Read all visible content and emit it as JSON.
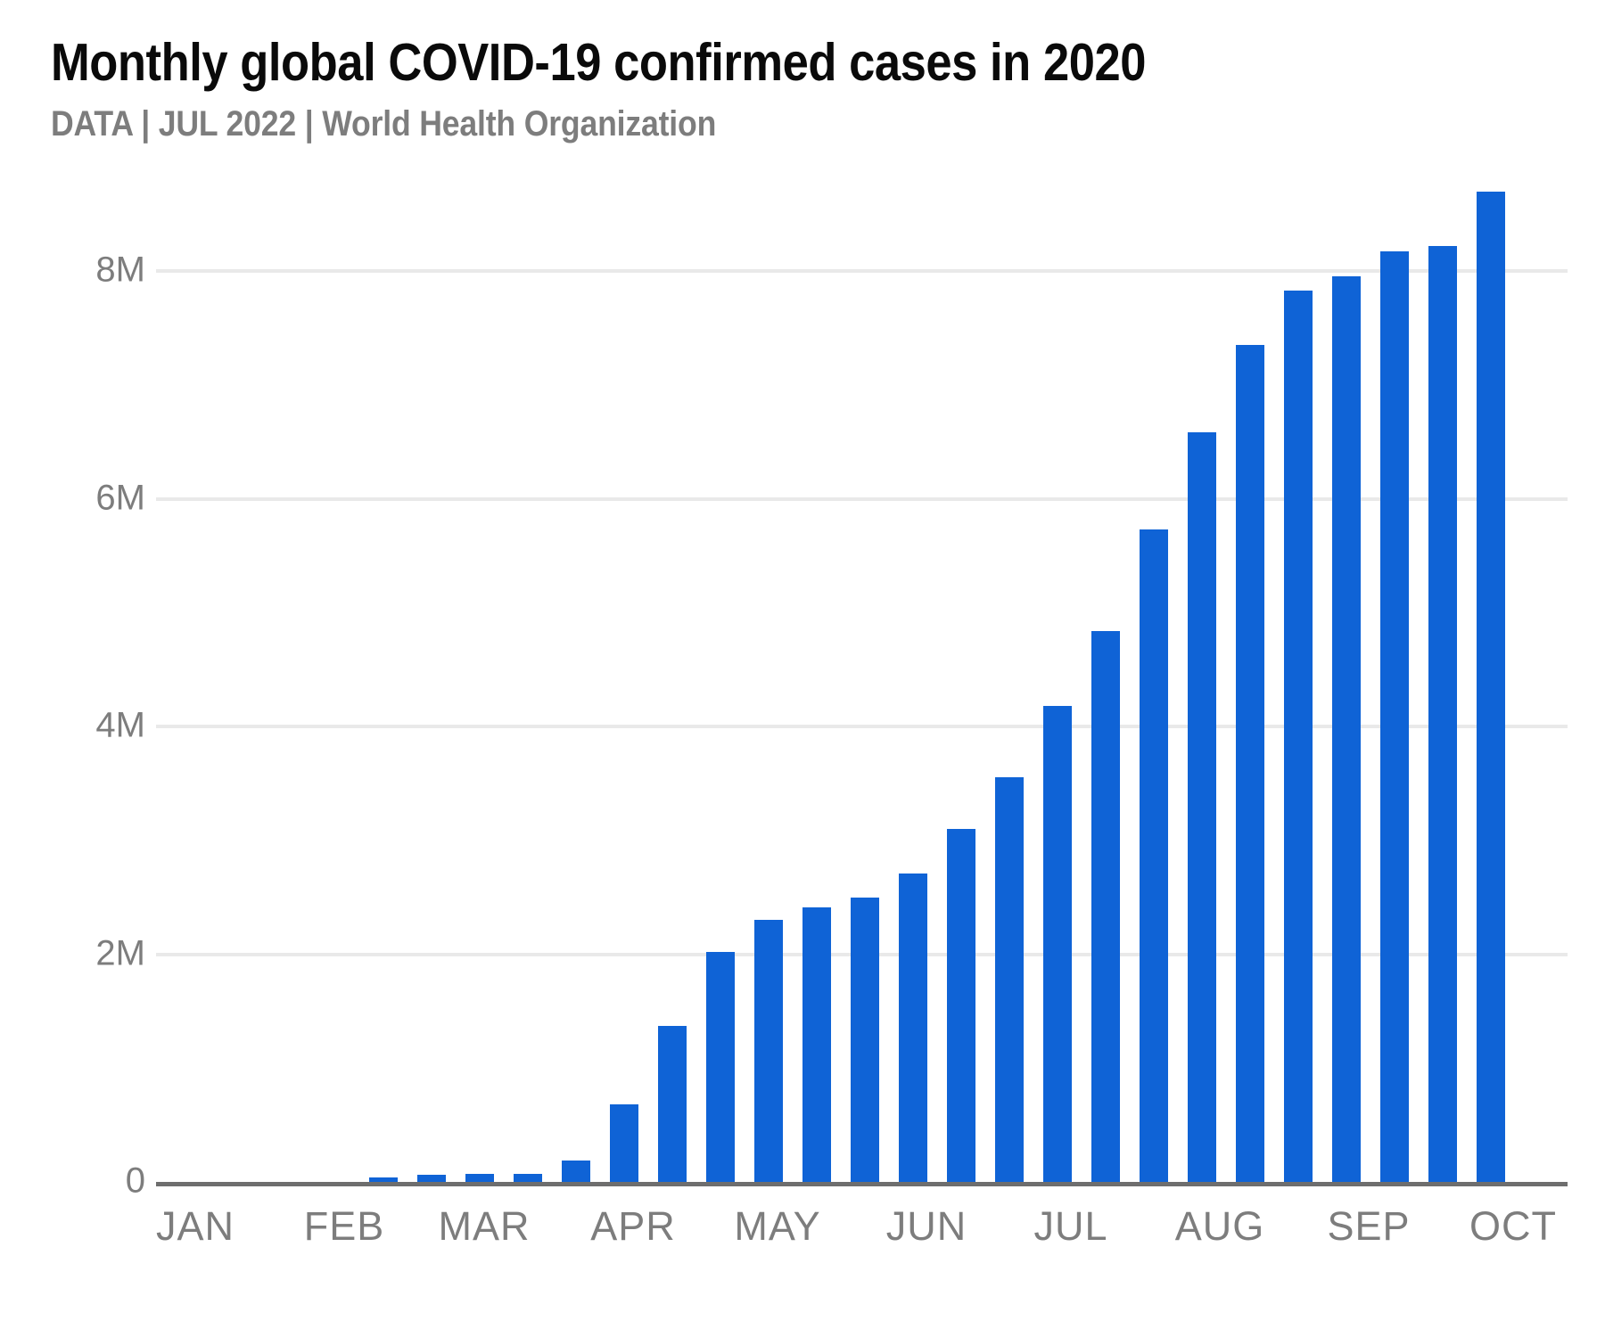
{
  "header": {
    "title": "Monthly global COVID-19 confirmed cases in 2020",
    "subtitle": "DATA | JUL 2022 | World Health Organization"
  },
  "chart_data": {
    "type": "bar",
    "title": "Monthly global COVID-19 confirmed cases in 2020",
    "subtitle": "DATA | JUL 2022 | World Health Organization",
    "unit": "confirmed cases, millions",
    "x_tick_labels": [
      "JAN",
      "FEB",
      "MAR",
      "APR",
      "MAY",
      "JUN",
      "JUL",
      "AUG",
      "SEP",
      "OCT"
    ],
    "y_tick_labels": [
      "0",
      "2M",
      "4M",
      "6M",
      "8M"
    ],
    "y_tick_values_M": [
      0,
      2,
      4,
      6,
      8
    ],
    "ylim_M": [
      0,
      9
    ],
    "grid": "horizontal",
    "legend": "none",
    "bar_color": "#0f63d6",
    "values_M": [
      0.04,
      0.06,
      0.07,
      0.07,
      0.19,
      0.68,
      1.37,
      2.02,
      2.3,
      2.41,
      2.5,
      2.71,
      3.1,
      3.55,
      4.18,
      4.84,
      5.73,
      6.58,
      7.35,
      7.83,
      7.95,
      8.17,
      8.22,
      8.7
    ]
  },
  "colors": {
    "background": "#ffffff",
    "bar": "#0f63d6",
    "title_text": "#0a0a0a",
    "subtitle_text": "#7d7d7d",
    "axis_label_text": "#7d7d7d",
    "gridline": "#e9e9e9",
    "baseline": "#6e6e6e"
  }
}
